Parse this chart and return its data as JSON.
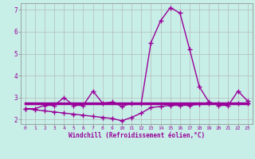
{
  "xlabel": "Windchill (Refroidissement éolien,°C)",
  "x_values": [
    0,
    1,
    2,
    3,
    4,
    5,
    6,
    7,
    8,
    9,
    10,
    11,
    12,
    13,
    14,
    15,
    16,
    17,
    18,
    19,
    20,
    21,
    22,
    23
  ],
  "line1": [
    2.5,
    2.5,
    2.65,
    2.65,
    3.0,
    2.65,
    2.65,
    3.3,
    2.75,
    2.8,
    2.6,
    2.75,
    2.75,
    5.5,
    6.5,
    7.1,
    6.85,
    5.2,
    3.5,
    2.8,
    2.65,
    2.65,
    3.3,
    2.85
  ],
  "line2": [
    2.75,
    2.75,
    2.75,
    2.75,
    2.75,
    2.75,
    2.75,
    2.75,
    2.75,
    2.75,
    2.75,
    2.75,
    2.75,
    2.75,
    2.75,
    2.75,
    2.75,
    2.75,
    2.75,
    2.75,
    2.75,
    2.75,
    2.75,
    2.75
  ],
  "line3": [
    2.5,
    2.45,
    2.4,
    2.35,
    2.3,
    2.25,
    2.2,
    2.15,
    2.1,
    2.05,
    1.95,
    2.1,
    2.3,
    2.55,
    2.6,
    2.65,
    2.65,
    2.65,
    2.7,
    2.75,
    2.75,
    2.75,
    2.75,
    2.75
  ],
  "ylim": [
    1.8,
    7.3
  ],
  "yticks": [
    2,
    3,
    4,
    5,
    6,
    7
  ],
  "xticks": [
    0,
    1,
    2,
    3,
    4,
    5,
    6,
    7,
    8,
    9,
    10,
    11,
    12,
    13,
    14,
    15,
    16,
    17,
    18,
    19,
    20,
    21,
    22,
    23
  ],
  "line_color": "#990099",
  "marker": "+",
  "marker_size": 4.0,
  "bg_color": "#c8eee8",
  "grid_color": "#b0b0b0",
  "tick_color": "#990099",
  "axis_label_color": "#990099",
  "linewidth1": 1.0,
  "linewidth2": 2.5,
  "linewidth3": 1.0
}
